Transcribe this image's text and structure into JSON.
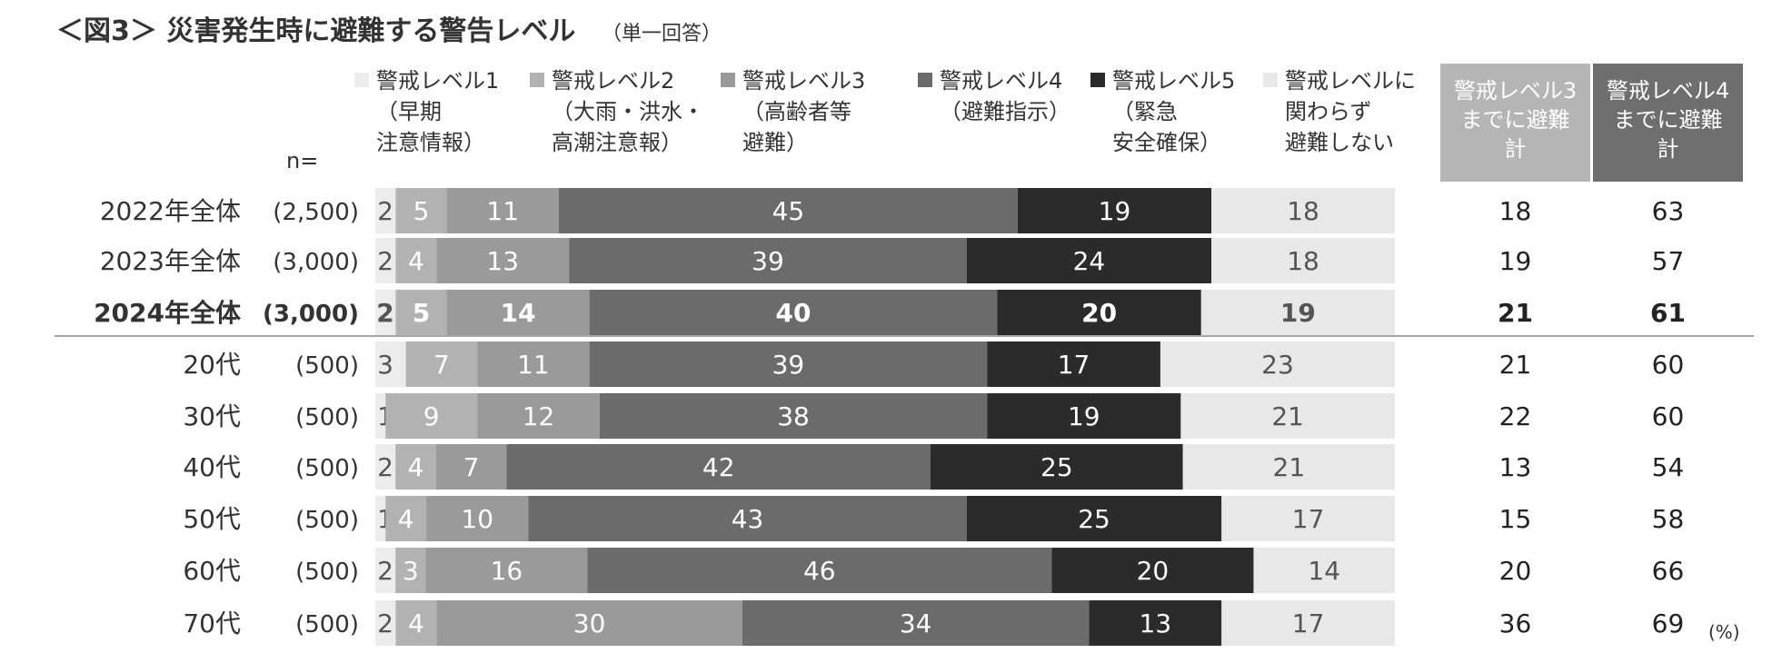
{
  "title": "＜図3＞ 災害発生時に避難する警告レベル",
  "subtitle": "（単一回答）",
  "n_label": "n=",
  "unit_label": "(%)",
  "colors": {
    "level1": "#ececec",
    "level2": "#b2b2b2",
    "level3": "#9a9a9a",
    "level4": "#6b6b6b",
    "level5": "#2b2b2b",
    "none": "#e8e8e8",
    "sum3_header": "#b5b5b5",
    "sum4_header": "#6e6e6e"
  },
  "chart_data": {
    "type": "bar",
    "orientation": "horizontal-stacked-100",
    "categories": [
      {
        "label": "2022年全体",
        "n": "(2,500)",
        "bold": false
      },
      {
        "label": "2023年全体",
        "n": "(3,000)",
        "bold": false
      },
      {
        "label": "2024年全体",
        "n": "(3,000)",
        "bold": true
      },
      {
        "label": "20代",
        "n": "(500)",
        "bold": false
      },
      {
        "label": "30代",
        "n": "(500)",
        "bold": false
      },
      {
        "label": "40代",
        "n": "(500)",
        "bold": false
      },
      {
        "label": "50代",
        "n": "(500)",
        "bold": false
      },
      {
        "label": "60代",
        "n": "(500)",
        "bold": false
      },
      {
        "label": "70代",
        "n": "(500)",
        "bold": false
      }
    ],
    "series": [
      {
        "name": "警戒レベル1\n（早期\n注意情報）",
        "values": [
          2,
          2,
          2,
          3,
          1,
          2,
          1,
          2,
          2
        ]
      },
      {
        "name": "警戒レベル2\n（大雨・洪水・\n高潮注意報）",
        "values": [
          5,
          4,
          5,
          7,
          9,
          4,
          4,
          3,
          4
        ]
      },
      {
        "name": "警戒レベル3\n（高齢者等\n避難）",
        "values": [
          11,
          13,
          14,
          11,
          12,
          7,
          10,
          16,
          30
        ]
      },
      {
        "name": "警戒レベル4\n（避難指示）",
        "values": [
          45,
          39,
          40,
          39,
          38,
          42,
          43,
          46,
          34
        ]
      },
      {
        "name": "警戒レベル5\n（緊急\n安全確保）",
        "values": [
          19,
          24,
          20,
          17,
          19,
          25,
          25,
          20,
          13
        ]
      },
      {
        "name": "警戒レベルに\n関わらず\n避難しない",
        "values": [
          18,
          18,
          19,
          23,
          21,
          21,
          17,
          14,
          17
        ]
      }
    ],
    "summary_columns": [
      {
        "name": "警戒レベル3\nまでに避難\n計",
        "values": [
          18,
          19,
          21,
          21,
          22,
          13,
          15,
          20,
          36
        ]
      },
      {
        "name": "警戒レベル4\nまでに避難\n計",
        "values": [
          63,
          57,
          61,
          60,
          60,
          54,
          58,
          66,
          69
        ]
      }
    ],
    "xlim": [
      0,
      100
    ],
    "legend_position": "top"
  }
}
